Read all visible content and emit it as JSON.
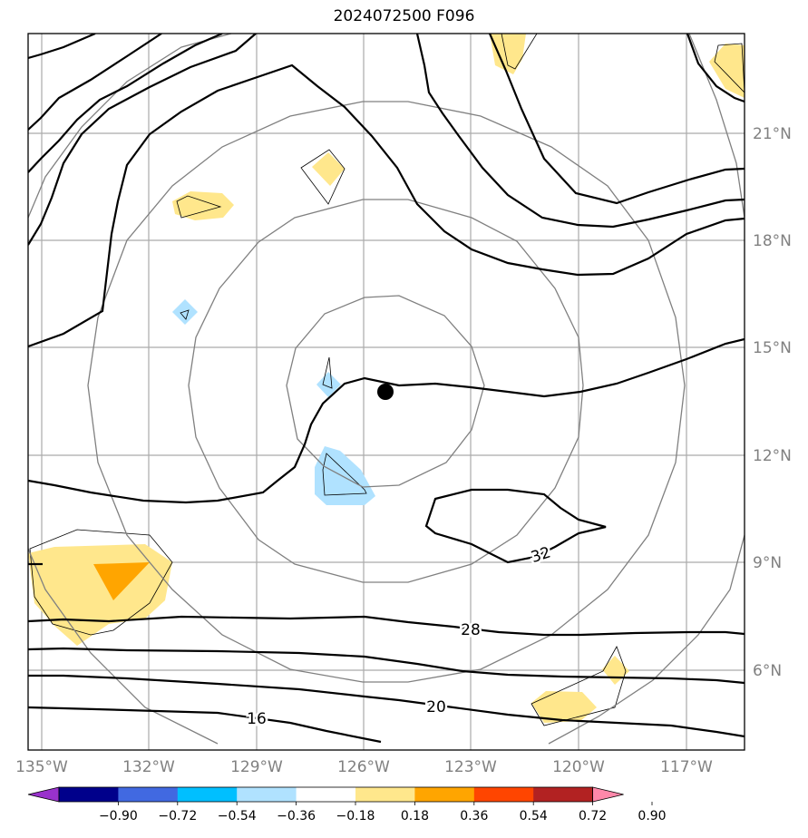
{
  "title": "2024072500 F096",
  "lat_labels": [
    "21°N",
    "18°N",
    "15°N",
    "12°N",
    "9°N",
    "6°N"
  ],
  "lon_labels": [
    "135°W",
    "132°W",
    "129°W",
    "126°W",
    "123°W",
    "120°W",
    "117°W"
  ],
  "contour_labels": [
    "32",
    "28",
    "20",
    "16"
  ],
  "colorbar": {
    "colors": [
      "#9932cc",
      "#00008b",
      "#4169e1",
      "#00bfff",
      "#b0e2ff",
      "#ffffff",
      "#ffe78c",
      "#ffa500",
      "#ff4500",
      "#b22222",
      "#ff88aa"
    ],
    "tick_labels": [
      "−0.90",
      "−0.72",
      "−0.54",
      "−0.36",
      "−0.18",
      "0.18",
      "0.36",
      "0.54",
      "0.72",
      "0.90"
    ]
  },
  "storm_center": {
    "lat": "13.8°N",
    "lon": "125.4°W"
  }
}
